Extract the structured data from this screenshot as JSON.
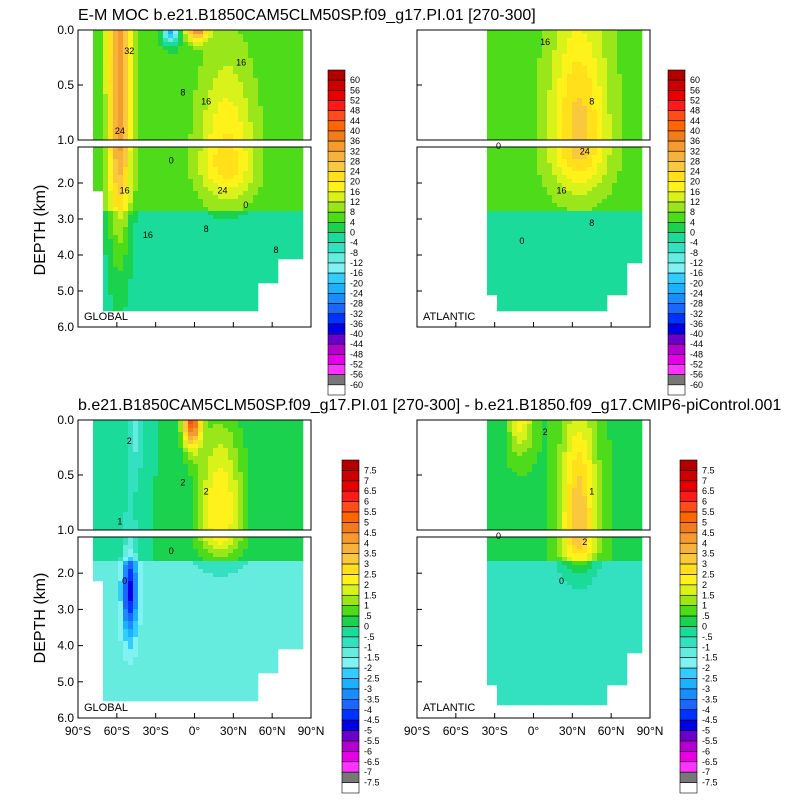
{
  "chart_data": [
    {
      "type": "heatmap",
      "title": "E-M MOC  b.e21.B1850CAM5CLM50SP.f09_g17.PI.01 [270-300]",
      "ylabel": "DEPTH (km)",
      "y_ticks_upper": [
        "0.0",
        "0.5",
        "1.0"
      ],
      "y_ticks_lower": [
        "2.0",
        "3.0",
        "4.0",
        "5.0",
        "6.0"
      ],
      "panels": [
        {
          "label": "GLOBAL",
          "basin": "global",
          "contour_labels": [
            "32",
            "24",
            "16",
            "8",
            "0",
            "16",
            "24",
            "16",
            "8",
            "0",
            "16",
            "8"
          ]
        },
        {
          "label": "ATLANTIC",
          "basin": "atlantic",
          "contour_labels": [
            "16",
            "8",
            "0",
            "24",
            "16",
            "8",
            "0"
          ]
        }
      ],
      "colorbar": {
        "ticks": [
          "60",
          "56",
          "52",
          "48",
          "44",
          "40",
          "36",
          "32",
          "28",
          "24",
          "20",
          "16",
          "12",
          "8",
          "4",
          "0",
          "-4",
          "-8",
          "-12",
          "-16",
          "-20",
          "-24",
          "-28",
          "-32",
          "-36",
          "-40",
          "-44",
          "-48",
          "-52",
          "-56",
          "-60"
        ]
      }
    },
    {
      "type": "heatmap",
      "title": "b.e21.B1850CAM5CLM50SP.f09_g17.PI.01 [270-300] - b.e21.B1850.f09_g17.CMIP6-piControl.001",
      "ylabel": "DEPTH (km)",
      "y_ticks_upper": [
        "0.0",
        "0.5",
        "1.0"
      ],
      "y_ticks_lower": [
        "2.0",
        "3.0",
        "4.0",
        "5.0",
        "6.0"
      ],
      "x_ticks": [
        "90°S",
        "60°S",
        "30°S",
        "0°",
        "30°N",
        "60°N",
        "90°N"
      ],
      "panels": [
        {
          "label": "GLOBAL",
          "basin": "global",
          "contour_labels": [
            "2",
            "1",
            "0",
            "2",
            "0",
            "2"
          ]
        },
        {
          "label": "ATLANTIC",
          "basin": "atlantic",
          "contour_labels": [
            "2",
            "1",
            "0",
            "2",
            "0"
          ]
        }
      ],
      "colorbar": {
        "ticks": [
          "7.5",
          "7",
          "6.5",
          "6",
          "5.5",
          "5",
          "4.5",
          "4",
          "3.5",
          "3",
          "2.5",
          "2",
          "1.5",
          "1",
          ".5",
          "0",
          "-.5",
          "-1",
          "-1.5",
          "-2",
          "-2.5",
          "-3",
          "-3.5",
          "-4",
          "-4.5",
          "-5",
          "-5.5",
          "-6",
          "-6.5",
          "-7",
          "-7.5"
        ]
      }
    }
  ],
  "palette": [
    "#b20000",
    "#cc0000",
    "#e60000",
    "#ff1a1a",
    "#ff4d1a",
    "#ff6600",
    "#f07c1e",
    "#f59a2e",
    "#f7b23c",
    "#fac83c",
    "#ffe01a",
    "#fff21a",
    "#d9f21a",
    "#99e61a",
    "#4ddb1a",
    "#1ad24d",
    "#1adb99",
    "#33e0c0",
    "#66ebdf",
    "#80f2f2",
    "#33ccff",
    "#1ab2ff",
    "#1a8cff",
    "#1a66ff",
    "#0033ff",
    "#0000e6",
    "#6a00cc",
    "#b300cc",
    "#e600e6",
    "#ff33ff",
    "#777777",
    "#999999"
  ]
}
